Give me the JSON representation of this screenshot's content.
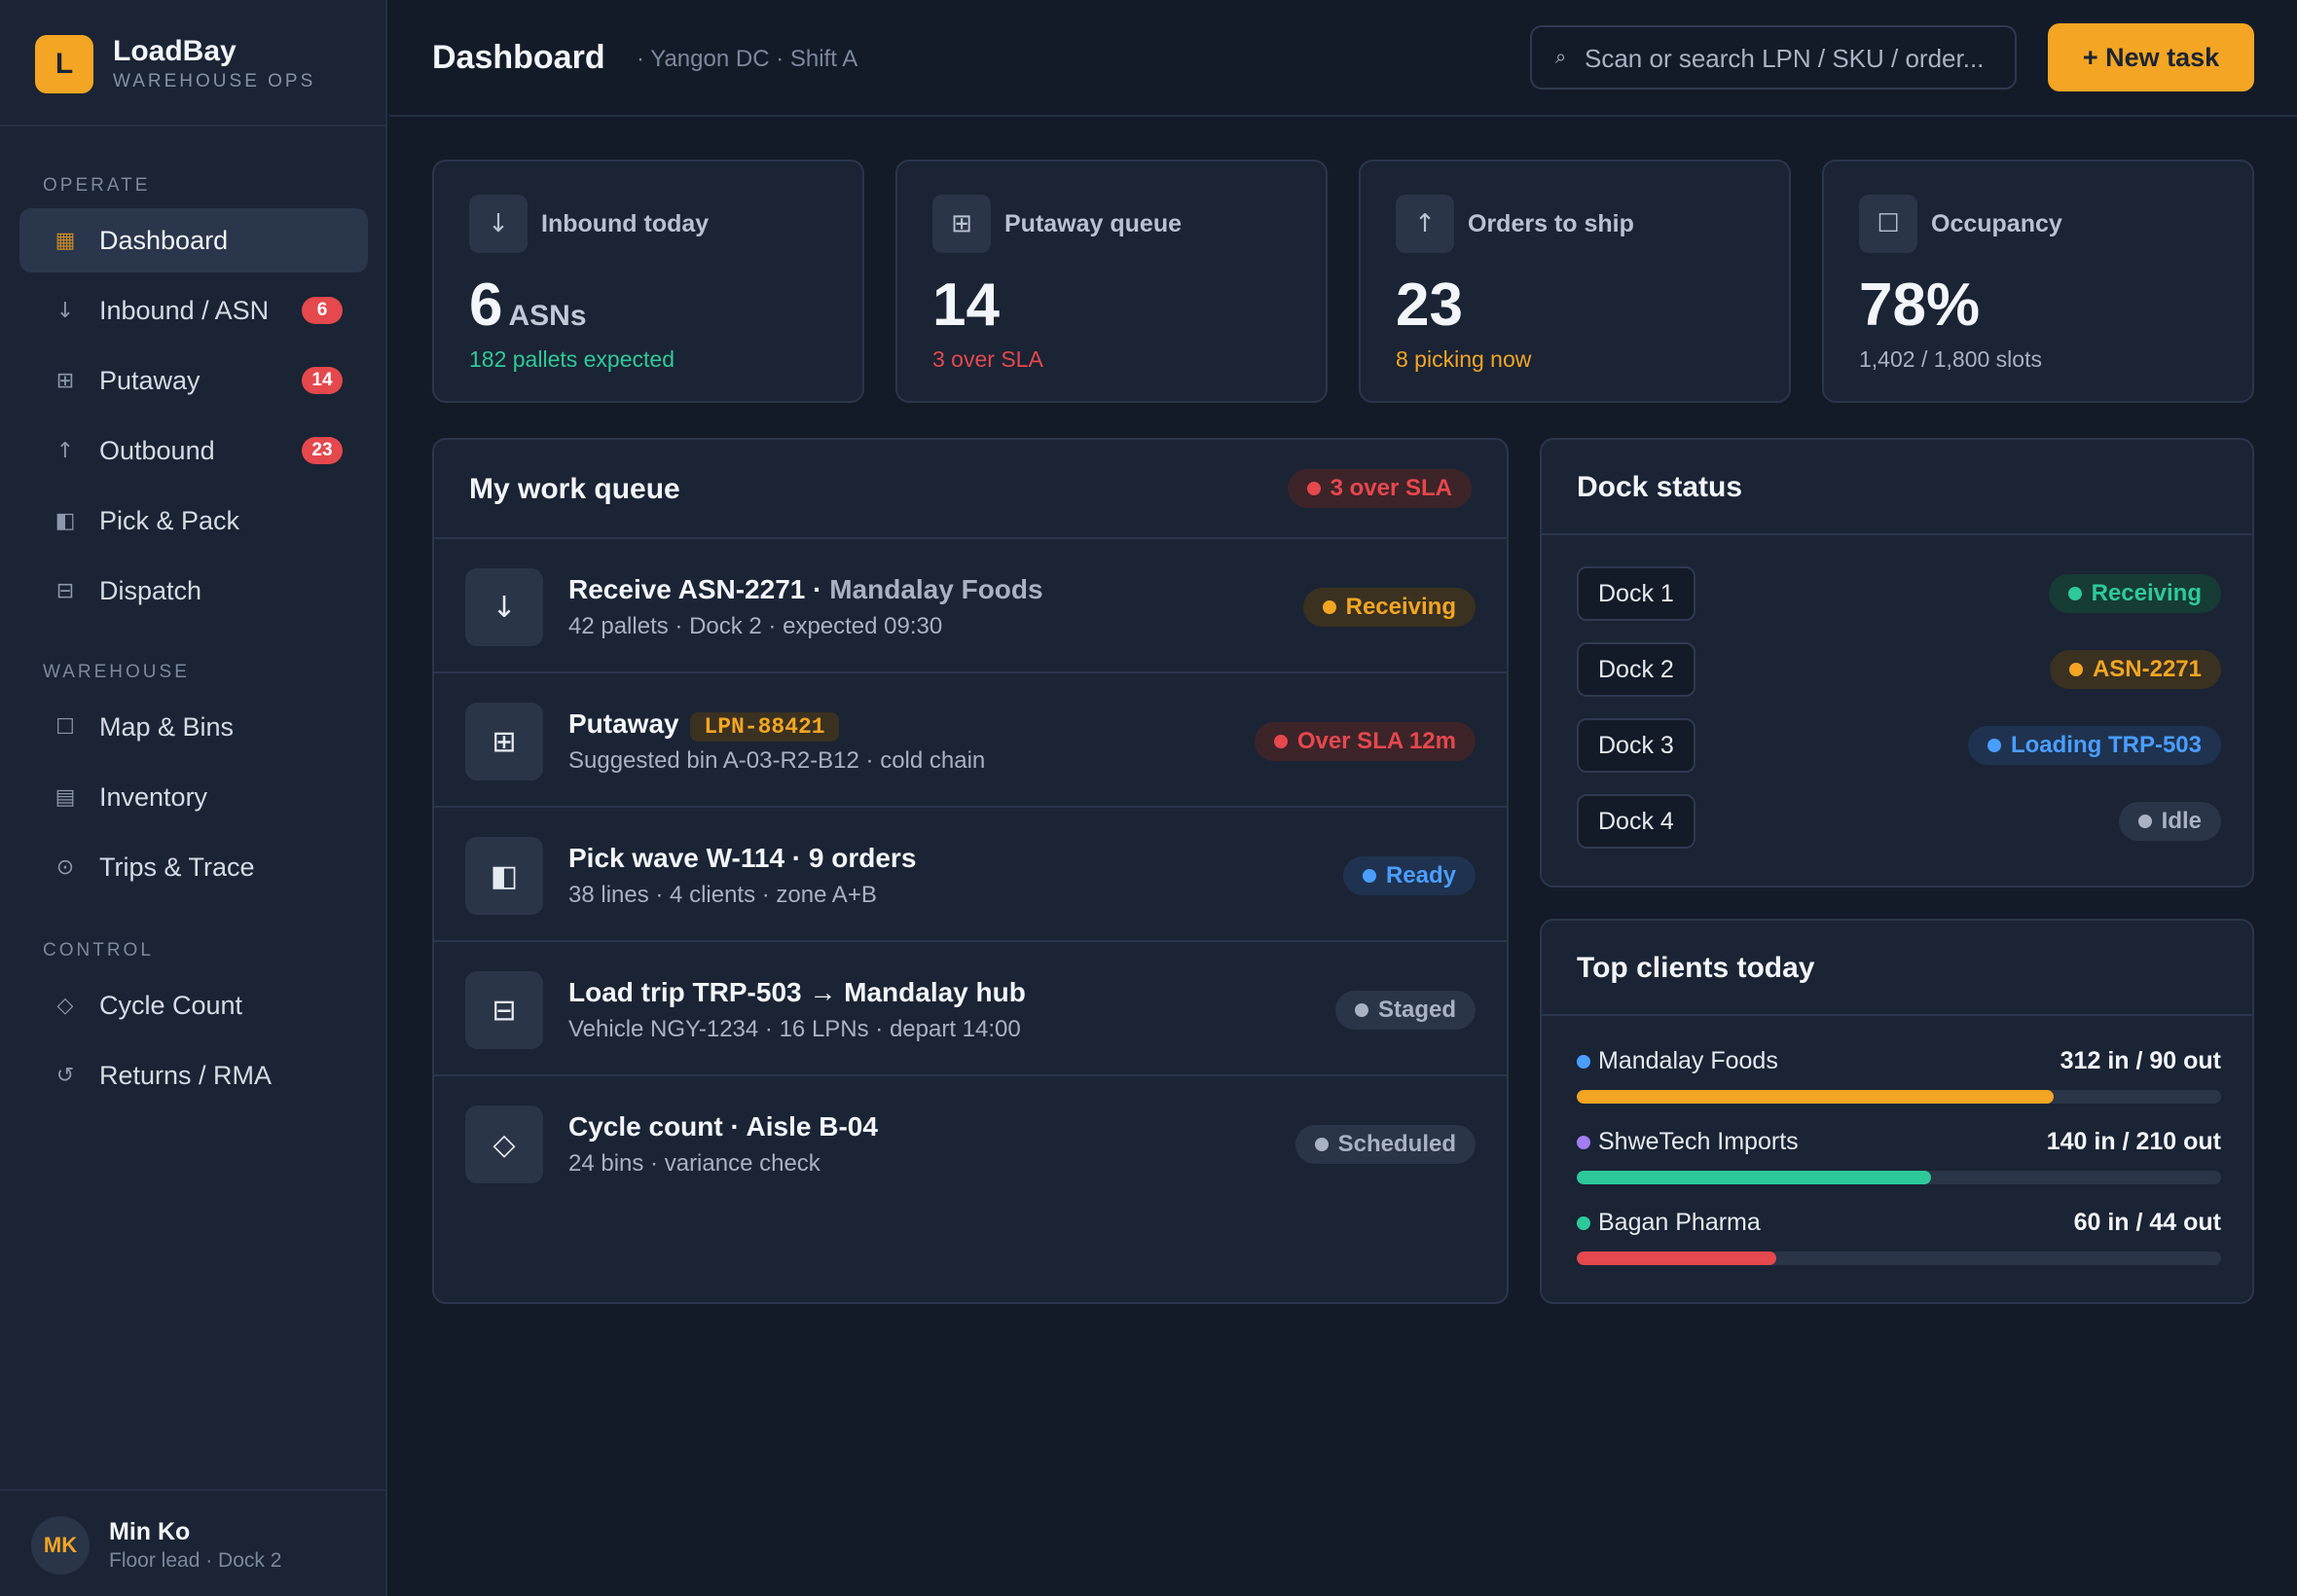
{
  "brand": {
    "logo_letter": "L",
    "name": "LoadBay",
    "subtitle": "WAREHOUSE OPS"
  },
  "sidebar": {
    "sections": [
      {
        "label": "OPERATE"
      },
      {
        "label": "WAREHOUSE"
      },
      {
        "label": "CONTROL"
      }
    ],
    "items": [
      {
        "label": "Dashboard",
        "icon": "dashboard-icon",
        "glyph": "▦",
        "active": true
      },
      {
        "label": "Inbound / ASN",
        "icon": "arrow-down-icon",
        "glyph": "↓",
        "badge": "6"
      },
      {
        "label": "Putaway",
        "icon": "grid-icon",
        "glyph": "⊞",
        "badge": "14"
      },
      {
        "label": "Outbound",
        "icon": "arrow-up-icon",
        "glyph": "↑",
        "badge": "23"
      },
      {
        "label": "Pick & Pack",
        "icon": "half-square-icon",
        "glyph": "◧"
      },
      {
        "label": "Dispatch",
        "icon": "box-minus-icon",
        "glyph": "⊟"
      },
      {
        "label": "Map & Bins",
        "icon": "square-icon",
        "glyph": "☐"
      },
      {
        "label": "Inventory",
        "icon": "inventory-icon",
        "glyph": "▤"
      },
      {
        "label": "Trips & Trace",
        "icon": "target-icon",
        "glyph": "⊙"
      },
      {
        "label": "Cycle Count",
        "icon": "diamond-icon",
        "glyph": "◇"
      },
      {
        "label": "Returns / RMA",
        "icon": "return-icon",
        "glyph": "↺"
      }
    ]
  },
  "user": {
    "initials": "MK",
    "name": "Min Ko",
    "role": "Floor lead · Dock 2"
  },
  "header": {
    "title": "Dashboard",
    "subtitle": "· Yangon DC · Shift A",
    "search_placeholder": "Scan or search LPN / SKU / order...",
    "search_icon": "search-icon",
    "new_button_label": "+ New task"
  },
  "stats": [
    {
      "title": "Inbound today",
      "icon": "arrow-down-icon",
      "glyph": "↓",
      "value": "6",
      "unit": "ASNs",
      "note": "182 pallets expected",
      "note_color": "#2ec99a"
    },
    {
      "title": "Putaway queue",
      "icon": "grid-icon",
      "glyph": "⊞",
      "value": "14",
      "unit": "",
      "note": "3 over SLA",
      "note_color": "#e5484d"
    },
    {
      "title": "Orders to ship",
      "icon": "arrow-up-icon",
      "glyph": "↑",
      "value": "23",
      "unit": "",
      "note": "8 picking now",
      "note_color": "#f3a523"
    },
    {
      "title": "Occupancy",
      "icon": "square-icon",
      "glyph": "☐",
      "value": "78%",
      "unit": "",
      "note": "1,402 / 1,800 slots",
      "note_color": "#a8b2c2"
    }
  ],
  "queue": {
    "title": "My work queue",
    "badge": "3 over SLA",
    "items": [
      {
        "icon": "arrow-down-icon",
        "glyph": "↓",
        "title": "Receive ASN-2271 · ",
        "title_muted": "Mandalay Foods",
        "lpn": "",
        "sub": "42 pallets · Dock 2 · expected 09:30",
        "status": "Receiving",
        "tone": "amber"
      },
      {
        "icon": "grid-icon",
        "glyph": "⊞",
        "title": "Putaway",
        "title_muted": "",
        "lpn": "LPN-88421",
        "sub": "Suggested bin A-03-R2-B12 · cold chain",
        "status": "Over SLA 12m",
        "tone": "red"
      },
      {
        "icon": "half-square-icon",
        "glyph": "◧",
        "title": "Pick wave W-114 · 9 orders",
        "title_muted": "",
        "lpn": "",
        "sub": "38 lines · 4 clients · zone A+B",
        "status": "Ready",
        "tone": "blue"
      },
      {
        "icon": "box-minus-icon",
        "glyph": "⊟",
        "title": "Load trip TRP-503 → Mandalay hub",
        "title_muted": "",
        "lpn": "",
        "sub": "Vehicle NGY-1234 · 16 LPNs · depart 14:00",
        "status": "Staged",
        "tone": "gray"
      },
      {
        "icon": "diamond-icon",
        "glyph": "◇",
        "title": "Cycle count · Aisle B-04",
        "title_muted": "",
        "lpn": "",
        "sub": "24 bins · variance check",
        "status": "Scheduled",
        "tone": "gray"
      }
    ]
  },
  "docks": {
    "title": "Dock status",
    "items": [
      {
        "name": "Dock 1",
        "status": "Receiving",
        "tone": "green"
      },
      {
        "name": "Dock 2",
        "status": "ASN-2271",
        "tone": "amber"
      },
      {
        "name": "Dock 3",
        "status": "Loading TRP-503",
        "tone": "blue"
      },
      {
        "name": "Dock 4",
        "status": "Idle",
        "tone": "gray"
      }
    ]
  },
  "clients": {
    "title": "Top clients today",
    "items": [
      {
        "name": "Mandalay Foods",
        "stats": "312 in / 90 out",
        "dot_color": "#4a9eff",
        "bar_color": "#f3a523",
        "fill": 0.74
      },
      {
        "name": "ShweTech Imports",
        "stats": "140 in / 210 out",
        "dot_color": "#a47cf3",
        "bar_color": "#2ec99a",
        "fill": 0.55
      },
      {
        "name": "Bagan Pharma",
        "stats": "60 in / 44 out",
        "dot_color": "#2ec99a",
        "bar_color": "#e5484d",
        "fill": 0.31
      }
    ]
  },
  "tones": {
    "amber": {
      "bg": "#3a3120",
      "fg": "#f3a523"
    },
    "red": {
      "bg": "#3d2429",
      "fg": "#e5484d"
    },
    "blue": {
      "bg": "#1f3350",
      "fg": "#4a9eff"
    },
    "gray": {
      "bg": "#2b3548",
      "fg": "#a8b2c2"
    },
    "green": {
      "bg": "#173b35",
      "fg": "#2ec99a"
    }
  }
}
